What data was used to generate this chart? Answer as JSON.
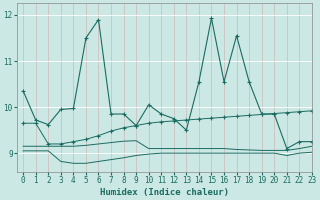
{
  "xlabel": "Humidex (Indice chaleur)",
  "bg_color": "#cce8e4",
  "grid_color": "#b0d4d0",
  "line_color": "#1a6b60",
  "xlim": [
    -0.5,
    23
  ],
  "ylim": [
    8.6,
    12.25
  ],
  "yticks": [
    9,
    10,
    11,
    12
  ],
  "xticks": [
    0,
    1,
    2,
    3,
    4,
    5,
    6,
    7,
    8,
    9,
    10,
    11,
    12,
    13,
    14,
    15,
    16,
    17,
    18,
    19,
    20,
    21,
    22,
    23
  ],
  "s1_x": [
    0,
    1,
    2,
    3,
    4,
    5,
    6,
    7,
    8,
    9,
    10,
    11,
    12,
    13,
    14,
    15,
    16,
    17,
    18,
    19,
    20,
    21,
    22,
    23
  ],
  "s1_y": [
    10.35,
    9.72,
    9.62,
    9.95,
    9.97,
    11.5,
    11.9,
    9.85,
    9.85,
    9.6,
    10.05,
    9.85,
    9.75,
    9.5,
    10.55,
    11.93,
    10.55,
    11.55,
    10.55,
    9.85,
    9.85,
    9.1,
    9.25,
    9.25
  ],
  "s2_x": [
    0,
    1,
    2,
    3,
    4,
    5,
    6,
    7,
    8,
    9,
    10,
    11,
    12,
    13,
    14,
    15,
    16,
    17,
    18,
    19,
    20,
    21,
    22,
    23
  ],
  "s2_y": [
    9.65,
    9.65,
    9.2,
    9.2,
    9.25,
    9.3,
    9.38,
    9.48,
    9.55,
    9.6,
    9.65,
    9.68,
    9.7,
    9.72,
    9.74,
    9.76,
    9.78,
    9.8,
    9.82,
    9.84,
    9.86,
    9.88,
    9.9,
    9.92
  ],
  "s3_x": [
    0,
    1,
    2,
    3,
    4,
    5,
    6,
    7,
    8,
    9,
    10,
    11,
    12,
    13,
    14,
    15,
    16,
    17,
    18,
    19,
    20,
    21,
    22,
    23
  ],
  "s3_y": [
    9.15,
    9.15,
    9.15,
    9.15,
    9.15,
    9.17,
    9.2,
    9.23,
    9.26,
    9.27,
    9.1,
    9.1,
    9.1,
    9.1,
    9.1,
    9.1,
    9.1,
    9.08,
    9.07,
    9.06,
    9.06,
    9.06,
    9.1,
    9.15
  ],
  "s4_x": [
    0,
    1,
    2,
    3,
    4,
    5,
    6,
    7,
    8,
    9,
    10,
    11,
    12,
    13,
    14,
    15,
    16,
    17,
    18,
    19,
    20,
    21,
    22,
    23
  ],
  "s4_y": [
    9.05,
    9.05,
    9.05,
    8.82,
    8.78,
    8.78,
    8.82,
    8.86,
    8.9,
    8.95,
    8.98,
    9.0,
    9.0,
    9.0,
    9.0,
    9.0,
    9.0,
    9.0,
    9.0,
    9.0,
    9.0,
    8.95,
    9.0,
    9.02
  ]
}
